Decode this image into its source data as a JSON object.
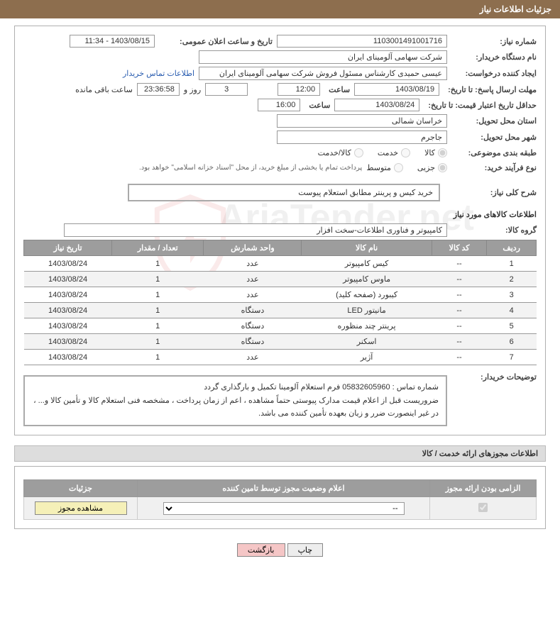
{
  "header": {
    "title": "جزئیات اطلاعات نیاز"
  },
  "fields": {
    "needNo": {
      "label": "شماره نیاز:",
      "value": "1103001491001716"
    },
    "announceDate": {
      "label": "تاریخ و ساعت اعلان عمومی:",
      "value": "1403/08/15 - 11:34"
    },
    "buyerOrg": {
      "label": "نام دستگاه خریدار:",
      "value": "شرکت سهامی آلومینای ایران"
    },
    "requester": {
      "label": "ایجاد کننده درخواست:",
      "value": "عیسی حمیدی کارشناس مسئول فروش شرکت سهامی آلومینای ایران"
    },
    "contactLink": "اطلاعات تماس خریدار",
    "deadline": {
      "label": "مهلت ارسال پاسخ: تا تاریخ:",
      "date": "1403/08/19",
      "timeLabel": "ساعت",
      "time": "12:00",
      "days": "3",
      "daysWord": "روز و",
      "countdown": "23:36:58",
      "remain": "ساعت باقی مانده"
    },
    "validity": {
      "label": "حداقل تاریخ اعتبار قیمت: تا تاریخ:",
      "date": "1403/08/24",
      "timeLabel": "ساعت",
      "time": "16:00"
    },
    "province": {
      "label": "استان محل تحویل:",
      "value": "خراسان شمالی"
    },
    "city": {
      "label": "شهر محل تحویل:",
      "value": "جاجرم"
    },
    "category": {
      "label": "طبقه بندی موضوعی:",
      "o1": "کالا",
      "o2": "خدمت",
      "o3": "کالا/خدمت"
    },
    "process": {
      "label": "نوع فرآیند خرید:",
      "o1": "جزیی",
      "o2": "متوسط",
      "note": "پرداخت تمام یا بخشی از مبلغ خرید، از محل \"اسناد خزانه اسلامی\" خواهد بود."
    },
    "desc": {
      "label": "شرح کلی نیاز:",
      "value": "خرید کیس و پرینتر مطابق استعلام پیوست"
    },
    "group": {
      "label": "گروه کالا:",
      "value": "کامپیوتر و فناوری اطلاعات-سخت افزار"
    },
    "buyerDesc": {
      "label": "توضیحات خریدار:",
      "value": "شماره تماس : 05832605960  فرم استعلام آلومینا تکمیل و بارگذاری گردد\nضروریست قبل از اعلام قیمت مدارک پیوستی حتماً مشاهده ، اعم از زمان پرداخت ، مشخصه فنی استعلام کالا و تأمین کالا و... ، در غیر اینصورت ضرر و زیان بعهده تأمین کننده می باشد."
    }
  },
  "itemsHeader": "اطلاعات کالاهای مورد نیاز",
  "table": {
    "cols": [
      "ردیف",
      "کد کالا",
      "نام کالا",
      "واحد شمارش",
      "تعداد / مقدار",
      "تاریخ نیاز"
    ],
    "rows": [
      [
        "1",
        "--",
        "کیس کامپیوتر",
        "عدد",
        "1",
        "1403/08/24"
      ],
      [
        "2",
        "--",
        "ماوس کامپیوتر",
        "عدد",
        "1",
        "1403/08/24"
      ],
      [
        "3",
        "--",
        "کیبورد (صفحه کلید)",
        "عدد",
        "1",
        "1403/08/24"
      ],
      [
        "4",
        "--",
        "مانیتور LED",
        "دستگاه",
        "1",
        "1403/08/24"
      ],
      [
        "5",
        "--",
        "پرینتر چند منظوره",
        "دستگاه",
        "1",
        "1403/08/24"
      ],
      [
        "6",
        "--",
        "اسکنر",
        "دستگاه",
        "1",
        "1403/08/24"
      ],
      [
        "7",
        "--",
        "آژیر",
        "عدد",
        "1",
        "1403/08/24"
      ]
    ]
  },
  "permits": {
    "title": "اطلاعات مجوزهای ارائه خدمت / کالا",
    "cols": [
      "الزامی بودن ارائه مجوز",
      "اعلام وضعیت مجوز توسط تامین کننده",
      "جزئیات"
    ],
    "selectVal": "--",
    "btn": "مشاهده مجوز"
  },
  "footer": {
    "print": "چاپ",
    "back": "بازگشت"
  },
  "watermark": "AriaTender.net"
}
